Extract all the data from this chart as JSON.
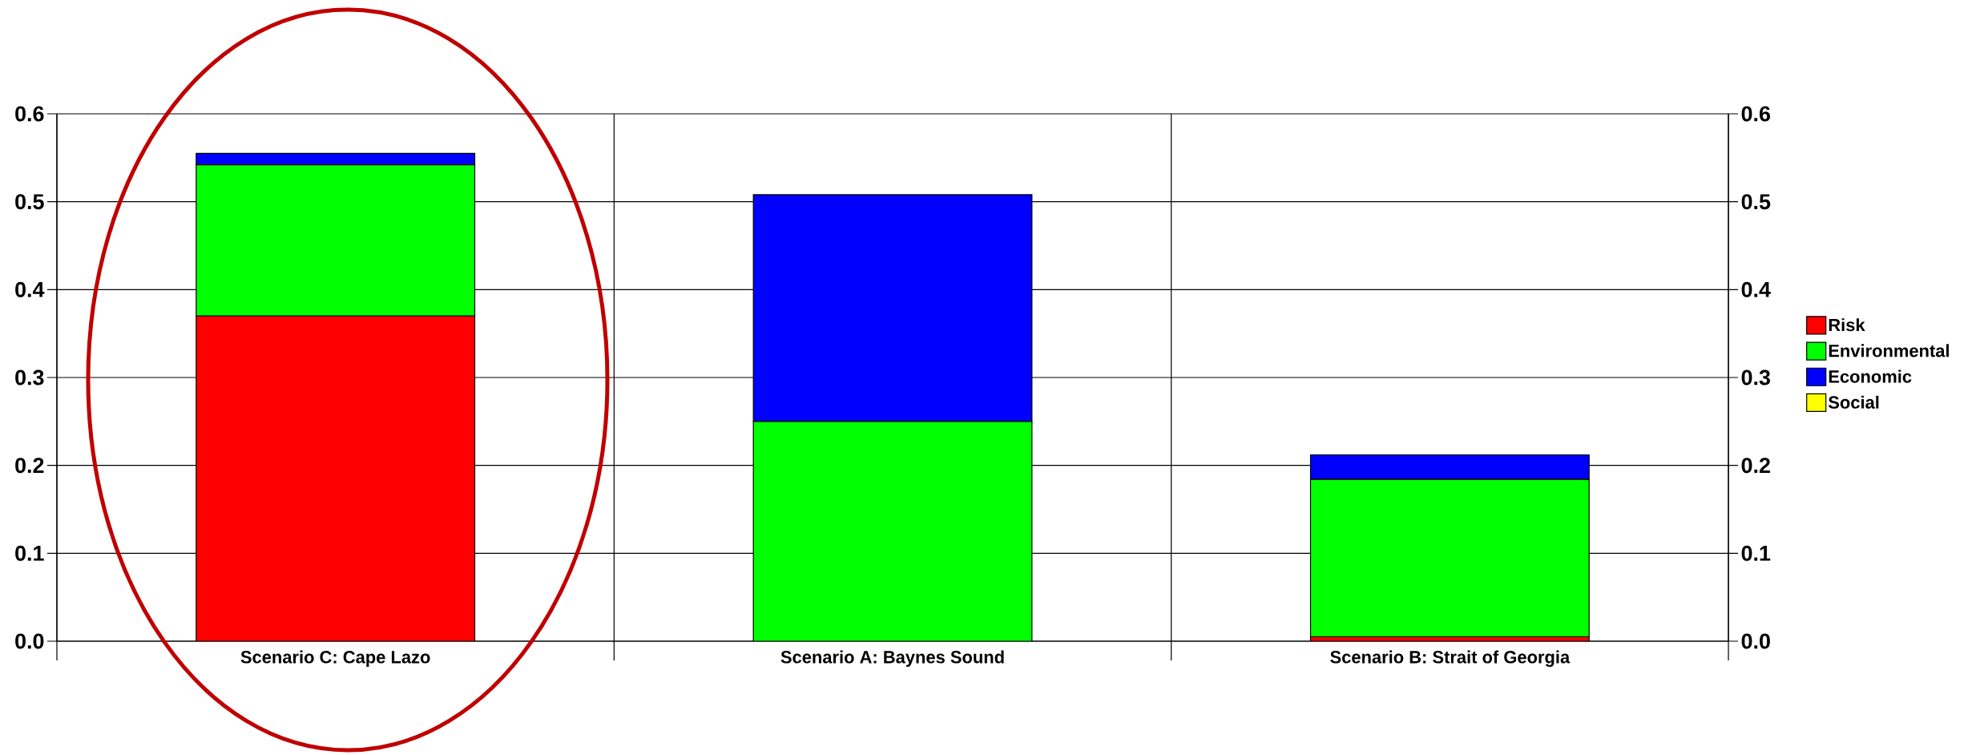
{
  "chart_data": {
    "type": "bar",
    "stacked": true,
    "categories": [
      "Scenario C: Cape Lazo",
      "Scenario A: Baynes Sound",
      "Scenario B: Strait of Georgia"
    ],
    "series": [
      {
        "name": "Risk",
        "color": "#ff0000",
        "values": [
          0.37,
          0,
          0.005
        ]
      },
      {
        "name": "Environmental",
        "color": "#00ff00",
        "values": [
          0.172,
          0.25,
          0.179
        ]
      },
      {
        "name": "Economic",
        "color": "#0000ff",
        "values": [
          0.013,
          0.258,
          0.028
        ]
      },
      {
        "name": "Social",
        "color": "#ffff00",
        "values": [
          0,
          0,
          0
        ]
      }
    ],
    "ylim": [
      0,
      0.6
    ],
    "yticks": [
      {
        "value": 0,
        "label": "0.0"
      },
      0.1,
      0.2,
      0.3,
      0.4,
      0.5,
      0.6
    ],
    "y2lim": [
      0,
      0.6
    ],
    "y2ticks": [
      {
        "value": 0,
        "label": "0.0"
      },
      0.1,
      0.2,
      0.3,
      0.4,
      0.5,
      0.6
    ],
    "grid": true,
    "legend": "right"
  }
}
